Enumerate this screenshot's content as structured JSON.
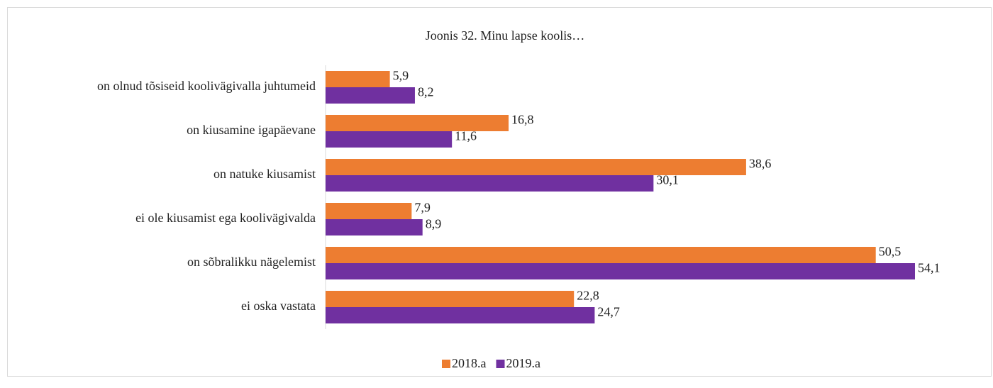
{
  "chart_data": {
    "type": "bar",
    "orientation": "horizontal",
    "title": "Joonis 32. Minu lapse koolis…",
    "categories": [
      "on olnud tõsiseid koolivägivalla juhtumeid",
      "on kiusamine igapäevane",
      "on natuke kiusamist",
      "ei ole kiusamist ega koolivägivalda",
      "on sõbralikku nägelemist",
      "ei oska vastata"
    ],
    "series": [
      {
        "name": "2018.a",
        "color": "#ed7d31",
        "values": [
          5.9,
          16.8,
          38.6,
          7.9,
          50.5,
          22.8
        ],
        "value_labels": [
          "5,9",
          "16,8",
          "38,6",
          "7,9",
          "50,5",
          "22,8"
        ]
      },
      {
        "name": "2019.a",
        "color": "#7030a0",
        "values": [
          8.2,
          11.6,
          30.1,
          8.9,
          54.1,
          24.7
        ],
        "value_labels": [
          "8,2",
          "11,6",
          "30,1",
          "8,9",
          "54,1",
          "24,7"
        ]
      }
    ],
    "legend": "bottom"
  }
}
